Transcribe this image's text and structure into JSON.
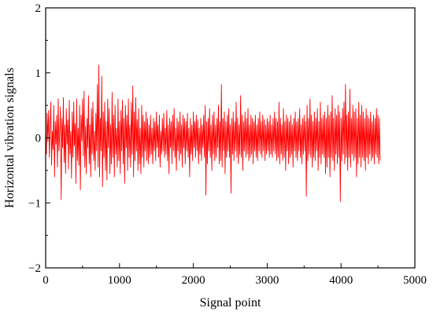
{
  "chart_data": {
    "type": "line",
    "title": "",
    "xlabel": "Signal point",
    "ylabel": "Horizontal vibration signals",
    "xlim": [
      0,
      5000
    ],
    "ylim": [
      -2,
      2
    ],
    "x_ticks": [
      0,
      1000,
      2000,
      3000,
      4000,
      5000
    ],
    "x_tick_labels": [
      "0",
      "1000",
      "2000",
      "3000",
      "4000",
      "5000"
    ],
    "y_ticks": [
      -2,
      -1,
      0,
      1,
      2
    ],
    "y_tick_labels": [
      "−2",
      "−1",
      "0",
      "1",
      "2"
    ],
    "grid": false,
    "legend": "none",
    "line_color": "#ff0000",
    "series": [
      {
        "sample_interval": 10,
        "values": [
          0.12,
          -0.25,
          0.38,
          -0.05,
          0.42,
          -0.3,
          0.18,
          0.55,
          -0.42,
          0.1,
          -0.18,
          0.5,
          -0.6,
          0.25,
          -0.1,
          0.35,
          -0.45,
          0.6,
          -0.2,
          0.05,
          0.48,
          -0.95,
          0.3,
          -0.15,
          0.62,
          -0.38,
          0.2,
          -0.55,
          0.45,
          -0.1,
          0.28,
          -0.48,
          0.58,
          -0.25,
          0.1,
          -0.62,
          0.4,
          -0.3,
          0.55,
          -0.12,
          0.22,
          -0.7,
          0.6,
          -0.35,
          0.15,
          -0.42,
          0.5,
          -0.8,
          0.35,
          -0.05,
          0.6,
          -0.28,
          0.72,
          -0.45,
          0.18,
          -0.55,
          0.3,
          -0.15,
          0.65,
          -0.4,
          0.2,
          -0.6,
          0.45,
          -0.25,
          0.55,
          -0.35,
          0.1,
          -0.5,
          0.38,
          -0.2,
          0.82,
          -0.45,
          1.12,
          -0.6,
          0.3,
          -0.2,
          0.95,
          -0.75,
          0.4,
          -0.3,
          0.55,
          -0.5,
          0.25,
          -0.65,
          0.6,
          -0.15,
          0.45,
          -0.55,
          0.2,
          -0.4,
          0.7,
          -0.3,
          0.35,
          -0.6,
          0.5,
          -0.25,
          0.15,
          -0.45,
          0.6,
          -0.35,
          0.25,
          -0.55,
          0.42,
          -0.2,
          0.58,
          -0.4,
          0.3,
          -0.7,
          0.5,
          -0.15,
          0.35,
          -0.5,
          0.6,
          -0.3,
          0.2,
          -0.45,
          0.55,
          -0.25,
          0.8,
          -0.6,
          0.4,
          -0.35,
          0.62,
          -0.2,
          0.28,
          -0.5,
          0.45,
          -0.4,
          0.15,
          -0.55,
          0.5,
          -0.3,
          0.35,
          -0.45,
          0.25,
          -0.2,
          0.4,
          -0.35,
          0.3,
          -0.4,
          0.2,
          -0.3,
          0.35,
          -0.25,
          0.15,
          -0.4,
          0.3,
          -0.2,
          0.25,
          -0.35,
          0.4,
          -0.15,
          0.2,
          -0.3,
          0.35,
          -0.45,
          0.1,
          -0.25,
          0.3,
          -0.2,
          0.38,
          -0.3,
          0.15,
          -0.25,
          0.42,
          -0.35,
          0.2,
          -0.55,
          0.3,
          -0.15,
          0.25,
          -0.4,
          0.35,
          -0.2,
          0.45,
          -0.3,
          0.15,
          -0.5,
          0.3,
          -0.2,
          0.25,
          -0.35,
          0.4,
          -0.25,
          0.2,
          -0.45,
          0.35,
          -0.15,
          0.3,
          -0.4,
          0.25,
          -0.2,
          0.38,
          -0.3,
          0.15,
          -0.6,
          0.3,
          -0.25,
          0.2,
          -0.35,
          0.4,
          -0.15,
          0.25,
          -0.3,
          0.35,
          -0.2,
          0.28,
          -0.4,
          0.15,
          -0.25,
          0.3,
          -0.35,
          0.2,
          -0.15,
          0.35,
          -0.3,
          0.5,
          -0.88,
          0.25,
          -0.4,
          0.3,
          -0.2,
          0.45,
          -0.3,
          0.2,
          -0.5,
          0.35,
          -0.25,
          0.4,
          -0.35,
          0.2,
          -0.3,
          0.3,
          -0.15,
          0.5,
          -0.4,
          0.25,
          -0.35,
          0.82,
          -0.45,
          0.3,
          -0.2,
          0.4,
          -0.55,
          0.25,
          -0.3,
          0.35,
          -0.2,
          0.45,
          -0.3,
          0.2,
          -0.85,
          0.3,
          -0.25,
          0.4,
          -0.35,
          0.25,
          -0.2,
          0.55,
          -0.3,
          0.3,
          -0.4,
          0.2,
          -0.25,
          0.65,
          -0.3,
          0.35,
          -0.5,
          0.25,
          -0.2,
          0.4,
          -0.3,
          0.3,
          -0.25,
          0.45,
          -0.35,
          0.2,
          -0.3,
          0.35,
          -0.25,
          0.3,
          -0.4,
          0.25,
          -0.2,
          0.35,
          -0.3,
          0.2,
          -0.35,
          0.3,
          -0.2,
          0.4,
          -0.25,
          0.25,
          -0.3,
          0.35,
          -0.2,
          0.28,
          -0.35,
          0.2,
          -0.25,
          0.3,
          -0.2,
          0.25,
          -0.3,
          0.35,
          -0.25,
          0.2,
          -0.3,
          0.3,
          -0.2,
          0.4,
          -0.25,
          0.3,
          -0.35,
          0.25,
          -0.3,
          0.55,
          -0.4,
          0.3,
          -0.25,
          0.2,
          -0.35,
          0.45,
          -0.3,
          0.25,
          -0.5,
          0.35,
          -0.2,
          0.3,
          -0.4,
          0.25,
          -0.3,
          0.35,
          -0.25,
          0.2,
          -0.45,
          0.3,
          -0.2,
          0.4,
          -0.3,
          0.25,
          -0.35,
          0.3,
          -0.2,
          0.45,
          -0.3,
          0.2,
          -0.4,
          0.3,
          -0.25,
          0.35,
          -0.2,
          0.25,
          -0.9,
          0.5,
          -0.35,
          0.3,
          -0.25,
          0.6,
          -0.3,
          0.35,
          -0.45,
          0.25,
          -0.3,
          0.4,
          -0.35,
          0.3,
          -0.2,
          0.45,
          -0.5,
          0.25,
          -0.3,
          0.55,
          -0.4,
          0.3,
          -0.25,
          0.35,
          -0.3,
          0.4,
          -0.55,
          0.3,
          -0.45,
          0.5,
          -0.3,
          0.35,
          -0.6,
          0.4,
          -0.3,
          0.65,
          -0.35,
          0.3,
          -0.5,
          0.45,
          -0.25,
          0.35,
          -0.4,
          0.5,
          -0.3,
          0.4,
          -0.98,
          0.3,
          -0.35,
          0.45,
          -0.25,
          0.55,
          -0.4,
          0.82,
          -0.3,
          0.35,
          -0.5,
          0.4,
          -0.3,
          0.75,
          -0.45,
          0.3,
          -0.25,
          0.5,
          -0.35,
          0.4,
          -0.3,
          0.45,
          -0.6,
          0.3,
          -0.4,
          0.55,
          -0.3,
          0.35,
          -0.45,
          0.5,
          -0.3,
          0.4,
          -0.35,
          0.3,
          -0.5,
          0.45,
          -0.3,
          0.35,
          -0.4,
          0.3,
          -0.25,
          0.4,
          -0.35,
          0.25,
          -0.3,
          0.35,
          -0.4,
          0.3,
          -0.25,
          0.45,
          -0.3,
          0.35,
          -0.4,
          0.3,
          -0.35
        ]
      }
    ]
  }
}
